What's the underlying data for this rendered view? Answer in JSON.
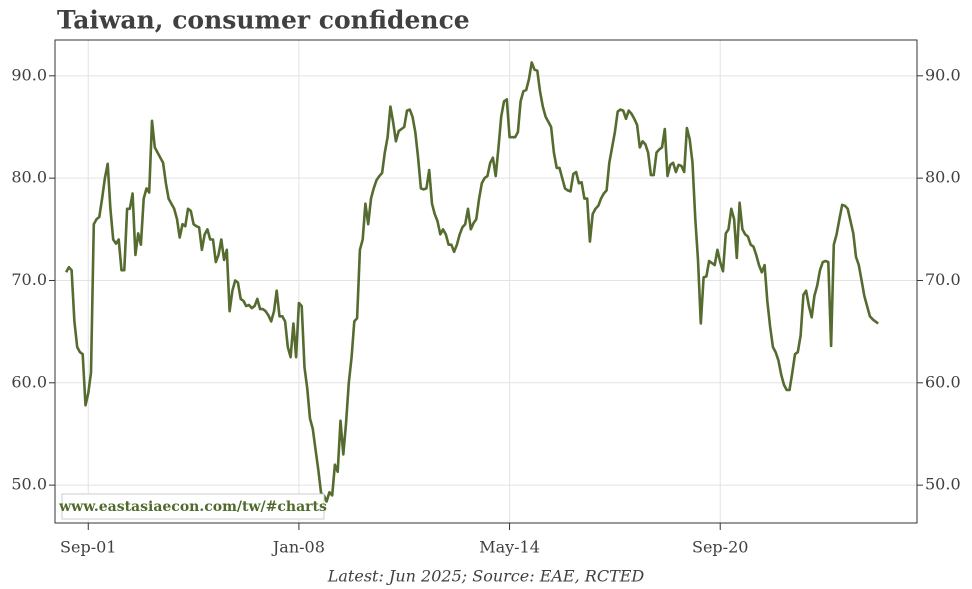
{
  "chart_data": {
    "type": "line",
    "title": "Taiwan, consumer confidence",
    "source_note": "Latest: Jun 2025; Source: EAE, RCTED",
    "watermark": "www.eastasiaecon.com/tw/#charts",
    "grid": true,
    "xlim": [
      "2000-09",
      "2026-08"
    ],
    "ylim": [
      46.3,
      93.5
    ],
    "xticks": [
      {
        "value": "2001-09",
        "label": "Sep-01"
      },
      {
        "value": "2008-01",
        "label": "Jan-08"
      },
      {
        "value": "2014-05",
        "label": "May-14"
      },
      {
        "value": "2020-09",
        "label": "Sep-20"
      }
    ],
    "yticks": [
      {
        "value": 50,
        "label": "50.0"
      },
      {
        "value": 60,
        "label": "60.0"
      },
      {
        "value": 70,
        "label": "70.0"
      },
      {
        "value": 80,
        "label": "80.0"
      },
      {
        "value": 90,
        "label": "90.0"
      }
    ],
    "x": [
      "2001-01",
      "2001-02",
      "2001-03",
      "2001-04",
      "2001-05",
      "2001-06",
      "2001-07",
      "2001-08",
      "2001-09",
      "2001-10",
      "2001-11",
      "2001-12",
      "2002-01",
      "2002-02",
      "2002-03",
      "2002-04",
      "2002-05",
      "2002-06",
      "2002-07",
      "2002-08",
      "2002-09",
      "2002-10",
      "2002-11",
      "2002-12",
      "2003-01",
      "2003-02",
      "2003-03",
      "2003-04",
      "2003-05",
      "2003-06",
      "2003-07",
      "2003-08",
      "2003-09",
      "2003-10",
      "2003-11",
      "2003-12",
      "2004-01",
      "2004-02",
      "2004-03",
      "2004-04",
      "2004-05",
      "2004-06",
      "2004-07",
      "2004-08",
      "2004-09",
      "2004-10",
      "2004-11",
      "2004-12",
      "2005-01",
      "2005-02",
      "2005-03",
      "2005-04",
      "2005-05",
      "2005-06",
      "2005-07",
      "2005-08",
      "2005-09",
      "2005-10",
      "2005-11",
      "2005-12",
      "2006-01",
      "2006-02",
      "2006-03",
      "2006-04",
      "2006-05",
      "2006-06",
      "2006-07",
      "2006-08",
      "2006-09",
      "2006-10",
      "2006-11",
      "2006-12",
      "2007-01",
      "2007-02",
      "2007-03",
      "2007-04",
      "2007-05",
      "2007-06",
      "2007-07",
      "2007-08",
      "2007-09",
      "2007-10",
      "2007-11",
      "2007-12",
      "2008-01",
      "2008-02",
      "2008-03",
      "2008-04",
      "2008-05",
      "2008-06",
      "2008-07",
      "2008-08",
      "2008-09",
      "2008-10",
      "2008-11",
      "2008-12",
      "2009-01",
      "2009-02",
      "2009-03",
      "2009-04",
      "2009-05",
      "2009-06",
      "2009-07",
      "2009-08",
      "2009-09",
      "2009-10",
      "2009-11",
      "2009-12",
      "2010-01",
      "2010-02",
      "2010-03",
      "2010-04",
      "2010-05",
      "2010-06",
      "2010-07",
      "2010-08",
      "2010-09",
      "2010-10",
      "2010-11",
      "2010-12",
      "2011-01",
      "2011-02",
      "2011-03",
      "2011-04",
      "2011-05",
      "2011-06",
      "2011-07",
      "2011-08",
      "2011-09",
      "2011-10",
      "2011-11",
      "2011-12",
      "2012-01",
      "2012-02",
      "2012-03",
      "2012-04",
      "2012-05",
      "2012-06",
      "2012-07",
      "2012-08",
      "2012-09",
      "2012-10",
      "2012-11",
      "2012-12",
      "2013-01",
      "2013-02",
      "2013-03",
      "2013-04",
      "2013-05",
      "2013-06",
      "2013-07",
      "2013-08",
      "2013-09",
      "2013-10",
      "2013-11",
      "2013-12",
      "2014-01",
      "2014-02",
      "2014-03",
      "2014-04",
      "2014-05",
      "2014-06",
      "2014-07",
      "2014-08",
      "2014-09",
      "2014-10",
      "2014-11",
      "2014-12",
      "2015-01",
      "2015-02",
      "2015-03",
      "2015-04",
      "2015-05",
      "2015-06",
      "2015-07",
      "2015-08",
      "2015-09",
      "2015-10",
      "2015-11",
      "2015-12",
      "2016-01",
      "2016-02",
      "2016-03",
      "2016-04",
      "2016-05",
      "2016-06",
      "2016-07",
      "2016-08",
      "2016-09",
      "2016-10",
      "2016-11",
      "2016-12",
      "2017-01",
      "2017-02",
      "2017-03",
      "2017-04",
      "2017-05",
      "2017-06",
      "2017-07",
      "2017-08",
      "2017-09",
      "2017-10",
      "2017-11",
      "2017-12",
      "2018-01",
      "2018-02",
      "2018-03",
      "2018-04",
      "2018-05",
      "2018-06",
      "2018-07",
      "2018-08",
      "2018-09",
      "2018-10",
      "2018-11",
      "2018-12",
      "2019-01",
      "2019-02",
      "2019-03",
      "2019-04",
      "2019-05",
      "2019-06",
      "2019-07",
      "2019-08",
      "2019-09",
      "2019-10",
      "2019-11",
      "2019-12",
      "2020-01",
      "2020-02",
      "2020-03",
      "2020-04",
      "2020-05",
      "2020-06",
      "2020-07",
      "2020-08",
      "2020-09",
      "2020-10",
      "2020-11",
      "2020-12",
      "2021-01",
      "2021-02",
      "2021-03",
      "2021-04",
      "2021-05",
      "2021-06",
      "2021-07",
      "2021-08",
      "2021-09",
      "2021-10",
      "2021-11",
      "2021-12",
      "2022-01",
      "2022-02",
      "2022-03",
      "2022-04",
      "2022-05",
      "2022-06",
      "2022-07",
      "2022-08",
      "2022-09",
      "2022-10",
      "2022-11",
      "2022-12",
      "2023-01",
      "2023-02",
      "2023-03",
      "2023-04",
      "2023-05",
      "2023-06",
      "2023-07",
      "2023-08",
      "2023-09",
      "2023-10",
      "2023-11",
      "2023-12",
      "2024-01",
      "2024-02",
      "2024-03",
      "2024-04",
      "2024-05",
      "2024-06",
      "2024-07",
      "2024-08",
      "2024-09",
      "2024-10",
      "2024-11",
      "2024-12",
      "2025-01",
      "2025-02",
      "2025-03",
      "2025-04",
      "2025-05",
      "2025-06"
    ],
    "series": [
      {
        "color": "#556b2f",
        "values": [
          70.8,
          71.3,
          71.0,
          66,
          63.5,
          63.0,
          62.8,
          57.8,
          59,
          61,
          75.5,
          76,
          76.2,
          78,
          80,
          81.4,
          77,
          74,
          73.6,
          74,
          71,
          71,
          77,
          77,
          78.5,
          72.5,
          74.6,
          73.5,
          78,
          79,
          78.6,
          85.6,
          83,
          82.5,
          82,
          81.5,
          79.5,
          78,
          77.5,
          77,
          76,
          74.2,
          75.5,
          75.3,
          77,
          76.8,
          75.5,
          75.3,
          75.2,
          73,
          74.5,
          75,
          74,
          74,
          71.8,
          72.5,
          74,
          72,
          73,
          67,
          69,
          70,
          69.8,
          68.2,
          68,
          67.5,
          67.6,
          67.3,
          67.5,
          68.2,
          67.2,
          67.2,
          67,
          66.6,
          66,
          67,
          69,
          66.5,
          66.5,
          66,
          63.5,
          62.5,
          65.8,
          62.5,
          67.8,
          67.5,
          61.5,
          59.5,
          56.5,
          55.5,
          53.5,
          51.5,
          49.2,
          49,
          48.4,
          49.3,
          49,
          52,
          51.3,
          56.3,
          53,
          56,
          60,
          62.5,
          66,
          66.3,
          73,
          74,
          77.5,
          75.5,
          78,
          79,
          79.8,
          80.2,
          80.5,
          82.5,
          84,
          87,
          85.5,
          83.6,
          84.6,
          84.8,
          85,
          86.6,
          86.7,
          86,
          84.5,
          82,
          79,
          78.9,
          79,
          80.8,
          77.5,
          76.5,
          75.8,
          74.5,
          75,
          74.5,
          73.5,
          73.5,
          72.8,
          73.5,
          74.5,
          75.2,
          75.5,
          77,
          75,
          75.6,
          76,
          78,
          79.5,
          80,
          80.2,
          81.5,
          82,
          80.2,
          83,
          86,
          87.5,
          87.7,
          84,
          84,
          84,
          84.5,
          87.5,
          88.5,
          88.6,
          89.7,
          91.3,
          90.6,
          90.5,
          88.5,
          87,
          86,
          85.5,
          85,
          82.5,
          81,
          81,
          80,
          79,
          78.8,
          78.7,
          80.4,
          80.6,
          79.5,
          79.6,
          78,
          78,
          73.8,
          76.5,
          77,
          77.3,
          78,
          78.5,
          78.8,
          81.5,
          83,
          84.5,
          86.5,
          86.7,
          86.6,
          85.8,
          86.6,
          86.3,
          85.8,
          85.2,
          83,
          83.6,
          83.3,
          82.5,
          80.3,
          80.3,
          82.5,
          82.8,
          83,
          84.8,
          80.2,
          81.3,
          81.5,
          80.6,
          81.3,
          81.2,
          80.6,
          84.9,
          83.8,
          81.5,
          76,
          72,
          65.8,
          70.3,
          70.4,
          71.9,
          71.7,
          71.5,
          73,
          71.8,
          70.9,
          74.6,
          75,
          77,
          76,
          72.2,
          77.6,
          75,
          74.5,
          74.3,
          73.5,
          73.3,
          72.5,
          71.5,
          70.8,
          71.5,
          68,
          65.5,
          63.5,
          63,
          62.2,
          60.8,
          59.8,
          59.3,
          59.3,
          61,
          62.8,
          63,
          64.6,
          68.6,
          69,
          67.5,
          66.4,
          68.5,
          69.5,
          71,
          71.8,
          71.9,
          71.8,
          63.6,
          73.5,
          74.5,
          76,
          77.4,
          77.3,
          77,
          75.8,
          74.6,
          72.3,
          71.5,
          70,
          68.5,
          67.5,
          66.5,
          66.2,
          66,
          65.8
        ]
      }
    ]
  }
}
